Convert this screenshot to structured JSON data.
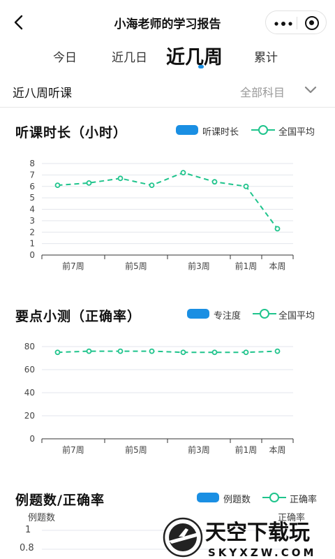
{
  "header": {
    "title": "小海老师的学习报告"
  },
  "tabs": [
    {
      "label": "今日",
      "active": false
    },
    {
      "label": "近几日",
      "active": false
    },
    {
      "label": "近几周",
      "active": true
    },
    {
      "label": "累计",
      "active": false
    }
  ],
  "filter": {
    "title": "近八周听课",
    "subject": "全部科目"
  },
  "colors": {
    "blue": "#1a8fe3",
    "green": "#1fc48c",
    "grid": "#e3e6ec"
  },
  "charts": {
    "listen": {
      "title": "听课时长（小时）",
      "legend_bar": "听课时长",
      "legend_line": "全国平均"
    },
    "quiz": {
      "title": "要点小测（正确率）",
      "legend_bar": "专注度",
      "legend_line": "全国平均"
    },
    "examples": {
      "title": "例题数/正确率",
      "legend_bar": "例题数",
      "legend_line": "正确率",
      "left_axis": "例题数",
      "right_axis": "正确率",
      "y_ticks_visible": [
        "1",
        "0.8"
      ]
    }
  },
  "chart_data": [
    {
      "type": "line",
      "title": "听课时长（小时）",
      "x": [
        "前7周",
        "",
        "前5周",
        "",
        "前3周",
        "",
        "前1周",
        "本周"
      ],
      "tick_labels": [
        "前7周",
        "前5周",
        "前3周",
        "前1周",
        "本周"
      ],
      "series": [
        {
          "name": "全国平均",
          "values": [
            6.1,
            6.3,
            6.7,
            6.1,
            7.2,
            6.4,
            6.0,
            2.3
          ]
        }
      ],
      "ylim": [
        0,
        8
      ],
      "yticks": [
        0,
        1,
        2,
        3,
        4,
        5,
        6,
        7,
        8
      ],
      "grid": true,
      "legend": "top-right"
    },
    {
      "type": "line",
      "title": "要点小测（正确率）",
      "x": [
        "前7周",
        "",
        "前5周",
        "",
        "前3周",
        "",
        "前1周",
        "本周"
      ],
      "tick_labels": [
        "前7周",
        "前5周",
        "前3周",
        "前1周",
        "本周"
      ],
      "series": [
        {
          "name": "全国平均",
          "values": [
            75,
            76,
            76,
            76,
            75,
            75,
            75,
            76
          ]
        }
      ],
      "ylim": [
        0,
        80
      ],
      "yticks": [
        0,
        20,
        40,
        60,
        80
      ],
      "grid": true,
      "legend": "top-right"
    }
  ],
  "watermark": {
    "brand": "天空下载玩",
    "url": "SKYXZW.COM"
  }
}
